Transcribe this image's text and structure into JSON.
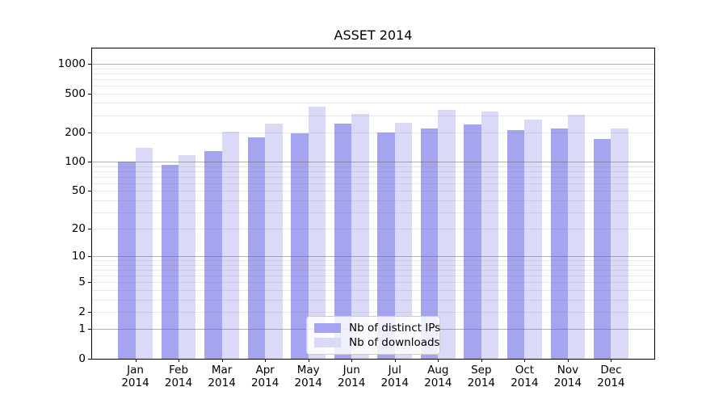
{
  "title": "ASSET 2014",
  "legend": {
    "items": [
      {
        "label": "Nb of distinct IPs",
        "color": "#a4a4f0"
      },
      {
        "label": "Nb of downloads",
        "color": "#dadaf8"
      }
    ]
  },
  "colors": {
    "bar_distinct_ips": "#a4a4f0",
    "bar_downloads": "#dadaf8",
    "grid_major": "#b0b0b0",
    "grid_minor": "#e4e4e4",
    "axis": "#000000",
    "background": "#ffffff"
  },
  "axes": {
    "y_tick_labels": [
      "1000",
      "500",
      "200",
      "100",
      "50",
      "20",
      "10",
      "5",
      "2",
      "1",
      "0"
    ],
    "y_tick_values": [
      1000,
      500,
      200,
      100,
      50,
      20,
      10,
      5,
      2,
      1,
      0
    ],
    "x_year": "2014"
  },
  "chart_data": {
    "type": "bar",
    "title": "ASSET 2014",
    "categories": [
      "Jan 2014",
      "Feb 2014",
      "Mar 2014",
      "Apr 2014",
      "May 2014",
      "Jun 2014",
      "Jul 2014",
      "Aug 2014",
      "Sep 2014",
      "Oct 2014",
      "Nov 2014",
      "Dec 2014"
    ],
    "series": [
      {
        "name": "Nb of distinct IPs",
        "color": "#a4a4f0",
        "values": [
          100,
          94,
          130,
          178,
          195,
          247,
          198,
          221,
          240,
          211,
          218,
          171
        ]
      },
      {
        "name": "Nb of downloads",
        "color": "#dadaf8",
        "values": [
          140,
          118,
          202,
          247,
          370,
          312,
          253,
          337,
          329,
          272,
          302,
          221
        ]
      }
    ],
    "yscale": "log1p",
    "ylim": [
      0,
      1425
    ],
    "y_ticks": [
      0,
      1,
      2,
      5,
      10,
      20,
      50,
      100,
      200,
      500,
      1000
    ],
    "grid": "on",
    "grid_major_at": [
      1,
      10,
      100,
      1000
    ],
    "legend_position": "lower center",
    "bar_width_axis_units": 0.4
  }
}
